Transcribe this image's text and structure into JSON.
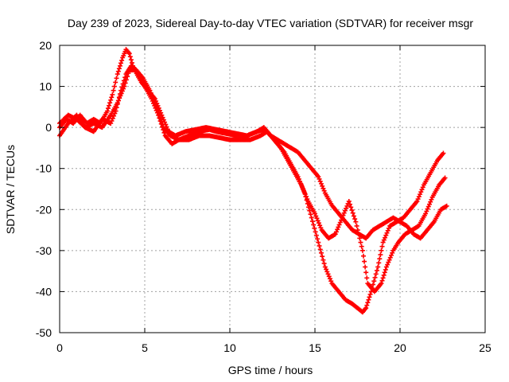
{
  "chart_data": {
    "type": "scatter",
    "title": "Day 239 of 2023, Sidereal Day-to-day VTEC variation (SDTVAR) for receiver msgr",
    "xlabel": "GPS time / hours",
    "ylabel": "SDTVAR / TECUs",
    "xlim": [
      0,
      25
    ],
    "ylim": [
      -50,
      20
    ],
    "xticks": [
      "0",
      "5",
      "10",
      "15",
      "20",
      "25"
    ],
    "yticks": [
      "20",
      "10",
      "0",
      "-10",
      "-20",
      "-30",
      "-40",
      "-50"
    ],
    "grid": true,
    "marker": "+",
    "color": "#ff0000",
    "series": [
      {
        "x": [
          0.0,
          0.4,
          0.8,
          1.2,
          1.6,
          2.0,
          2.4,
          2.8,
          3.1,
          3.4,
          3.7,
          3.9,
          4.1,
          4.3,
          4.6,
          5.0,
          5.4,
          5.8,
          6.2,
          6.6,
          7.0,
          7.6,
          8.2,
          8.8,
          9.2,
          9.8,
          10.4,
          11.0,
          11.6,
          12.0,
          12.4,
          12.8,
          13.2,
          13.6,
          14.0,
          14.4,
          14.8,
          15.2,
          15.6,
          16.0,
          16.4,
          16.8,
          17.2,
          17.5,
          17.8,
          18.0,
          18.3,
          18.7,
          19.0,
          19.4,
          19.8,
          20.2,
          20.6,
          21.0,
          21.4,
          21.8,
          22.2,
          22.6
        ],
        "y": [
          0,
          2,
          1,
          3,
          1,
          2,
          1,
          4,
          8,
          13,
          17,
          19,
          18,
          15,
          13,
          10,
          7,
          3,
          -2,
          -4,
          -3,
          -2,
          -1,
          -0.5,
          -1,
          -1.5,
          -2,
          -2,
          -1,
          -0.5,
          -2,
          -4,
          -6,
          -9,
          -12,
          -16,
          -22,
          -28,
          -34,
          -38,
          -40,
          -42,
          -43,
          -44,
          -45,
          -44,
          -40,
          -34,
          -28,
          -24,
          -23,
          -22,
          -20,
          -18,
          -14,
          -11,
          -8,
          -6
        ]
      },
      {
        "x": [
          0.0,
          0.5,
          1.0,
          1.5,
          2.0,
          2.5,
          3.0,
          3.3,
          3.6,
          3.9,
          4.2,
          4.5,
          4.9,
          5.3,
          5.7,
          6.1,
          6.5,
          7.0,
          7.6,
          8.2,
          8.8,
          9.4,
          10.0,
          10.6,
          11.2,
          11.8,
          12.2,
          12.6,
          13.0,
          13.4,
          13.8,
          14.2,
          14.6,
          15.0,
          15.4,
          15.8,
          16.2,
          16.6,
          17.0,
          17.4,
          17.8,
          18.1,
          18.5,
          18.9,
          19.2,
          19.6,
          19.9,
          20.3,
          20.7,
          21.1,
          21.5,
          21.9,
          22.3,
          22.7
        ],
        "y": [
          -2,
          1,
          3,
          0,
          -1,
          2,
          1,
          4,
          9,
          13,
          15,
          14,
          12,
          9,
          5,
          0,
          -2,
          -3,
          -3,
          -2,
          -2,
          -2.5,
          -3,
          -3,
          -3,
          -2,
          -1,
          -3,
          -5,
          -8,
          -11,
          -14,
          -18,
          -21,
          -25,
          -27,
          -26,
          -22,
          -18,
          -23,
          -30,
          -38,
          -40,
          -38,
          -34,
          -30,
          -28,
          -26,
          -25,
          -24,
          -21,
          -17,
          -14,
          -12
        ]
      },
      {
        "x": [
          0.0,
          0.5,
          1.0,
          1.5,
          2.0,
          2.5,
          3.0,
          3.4,
          3.8,
          4.1,
          4.4,
          4.8,
          5.2,
          5.6,
          6.0,
          6.4,
          6.8,
          7.4,
          8.0,
          8.6,
          9.2,
          9.8,
          10.4,
          11.0,
          11.6,
          12.0,
          12.4,
          12.8,
          13.2,
          13.6,
          14.0,
          14.4,
          14.8,
          15.2,
          15.6,
          16.0,
          16.4,
          16.8,
          17.2,
          17.6,
          18.0,
          18.4,
          18.8,
          19.2,
          19.6,
          20.0,
          20.4,
          20.8,
          21.2,
          21.6,
          22.0,
          22.4,
          22.8
        ],
        "y": [
          1,
          3,
          2,
          0,
          1,
          0,
          3,
          6,
          10,
          14,
          14,
          11,
          9,
          7,
          3,
          -1,
          -2,
          -1,
          -0.5,
          0,
          -0.5,
          -1,
          -1.5,
          -2,
          -1,
          0,
          -2,
          -3,
          -4,
          -5,
          -6,
          -8,
          -10,
          -12,
          -16,
          -19,
          -21,
          -23,
          -25,
          -26,
          -27,
          -25,
          -24,
          -23,
          -22,
          -23,
          -24,
          -26,
          -27,
          -25,
          -23,
          -20,
          -19
        ]
      }
    ]
  }
}
